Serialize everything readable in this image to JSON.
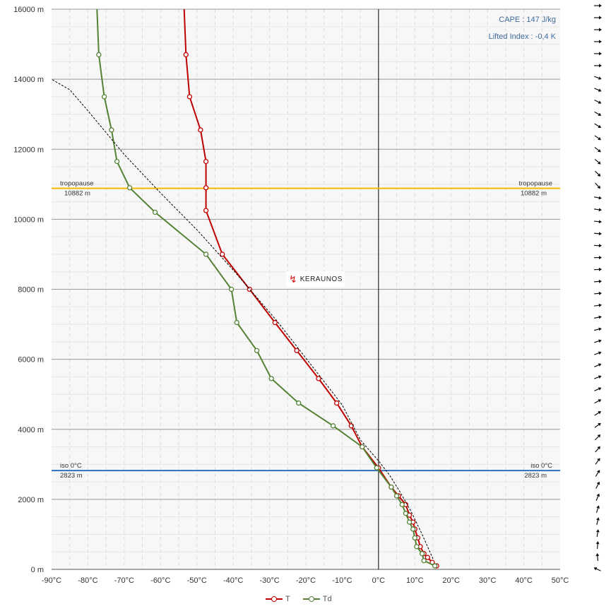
{
  "chart_data": {
    "type": "line",
    "title": "",
    "xlabel": "",
    "ylabel": "",
    "xlim": [
      -90,
      50
    ],
    "ylim": [
      0,
      16000
    ],
    "x_ticks": [
      "-90°C",
      "-80°C",
      "-70°C",
      "-60°C",
      "-50°C",
      "-40°C",
      "-30°C",
      "-20°C",
      "-10°C",
      "0°C",
      "10°C",
      "20°C",
      "30°C",
      "40°C",
      "50°C"
    ],
    "y_ticks": [
      "0 m",
      "2000 m",
      "4000 m",
      "6000 m",
      "8000 m",
      "10000 m",
      "12000 m",
      "14000 m",
      "16000 m"
    ],
    "grid": true,
    "series": [
      {
        "name": "T",
        "color": "#c00000",
        "points": [
          [
            16,
            100
          ],
          [
            14.8,
            200
          ],
          [
            13.5,
            340
          ],
          [
            12.5,
            450
          ],
          [
            11.5,
            650
          ],
          [
            10.8,
            900
          ],
          [
            10,
            1150
          ],
          [
            9.5,
            1350
          ],
          [
            8.5,
            1550
          ],
          [
            7.5,
            1850
          ],
          [
            5.5,
            2100
          ],
          [
            3.5,
            2350
          ],
          [
            0,
            2900
          ],
          [
            -4.5,
            3500
          ],
          [
            -7.5,
            4100
          ],
          [
            -11.5,
            4750
          ],
          [
            -16.5,
            5450
          ],
          [
            -22.5,
            6250
          ],
          [
            -28.5,
            7050
          ],
          [
            -35.5,
            8000
          ],
          [
            -43,
            9000
          ],
          [
            -47.5,
            10250
          ],
          [
            -47.5,
            10900
          ],
          [
            -47.5,
            11650
          ],
          [
            -49,
            12550
          ],
          [
            -52,
            13500
          ],
          [
            -53,
            14700
          ],
          [
            -53.5,
            16000
          ]
        ]
      },
      {
        "name": "Td",
        "color": "#548235",
        "points": [
          [
            15.5,
            100
          ],
          [
            12.5,
            250
          ],
          [
            12,
            450
          ],
          [
            10.5,
            650
          ],
          [
            10,
            900
          ],
          [
            9.5,
            1150
          ],
          [
            8.5,
            1350
          ],
          [
            7.5,
            1600
          ],
          [
            6.5,
            1850
          ],
          [
            5,
            2100
          ],
          [
            3.5,
            2350
          ],
          [
            -0.5,
            2900
          ],
          [
            -4.5,
            3500
          ],
          [
            -12.5,
            4100
          ],
          [
            -22,
            4750
          ],
          [
            -29.5,
            5450
          ],
          [
            -33.5,
            6250
          ],
          [
            -39,
            7050
          ],
          [
            -40.5,
            8000
          ],
          [
            -47.5,
            9000
          ],
          [
            -61.5,
            10200
          ],
          [
            -68.5,
            10900
          ],
          [
            -72,
            11650
          ],
          [
            -73.5,
            12550
          ],
          [
            -75.5,
            13500
          ],
          [
            -77,
            14700
          ],
          [
            -77.5,
            16000
          ]
        ]
      },
      {
        "name": "",
        "style": "dashed",
        "color": "#000000",
        "points": [
          [
            15,
            300
          ],
          [
            12,
            1000
          ],
          [
            9,
            1650
          ],
          [
            6,
            2200
          ],
          [
            3,
            2700
          ],
          [
            0,
            3100
          ],
          [
            -5,
            3700
          ],
          [
            -10,
            4700
          ],
          [
            -16,
            5500
          ],
          [
            -28,
            7100
          ],
          [
            -40,
            8550
          ],
          [
            -50,
            9700
          ],
          [
            -60,
            10750
          ],
          [
            -70,
            11850
          ],
          [
            -80,
            13100
          ],
          [
            -85,
            13700
          ],
          [
            -90,
            14000
          ]
        ]
      }
    ],
    "reference_lines": [
      {
        "name": "tropopause",
        "altitude": 10882,
        "label": "tropopause",
        "value_label": "10882 m",
        "color": "#f5b800"
      },
      {
        "name": "iso",
        "altitude": 2823,
        "label": "iso 0°C",
        "value_label": "2823 m",
        "color": "#2e6fbf"
      }
    ],
    "annotations": {
      "cape": "CAPE : 147 J/kg",
      "lifted_index": "Lifted Index : -0,4 K"
    },
    "legend": {
      "position": "bottom-center",
      "entries": [
        "T",
        "Td"
      ]
    },
    "wind_barbs_count": 48
  },
  "brand": {
    "name": "KERAUNOS"
  }
}
